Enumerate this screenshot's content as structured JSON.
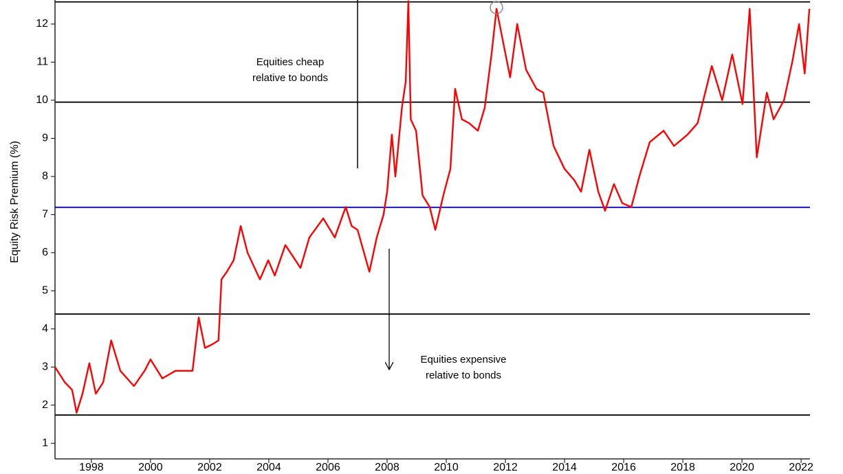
{
  "chart_data": {
    "type": "line",
    "ylabel": "Equity Risk Premium (%)",
    "xlim": [
      1996.77,
      2022.3
    ],
    "xticks": [
      1998,
      2000,
      2002,
      2004,
      2006,
      2008,
      2010,
      2012,
      2014,
      2016,
      2018,
      2020,
      2022
    ],
    "ylim": [
      0.59,
      12.63
    ],
    "yticks": [
      1,
      2,
      3,
      4,
      5,
      6,
      7,
      8,
      9,
      10,
      11,
      12
    ],
    "hlines": [
      {
        "value": 12.58,
        "color": "#000000"
      },
      {
        "value": 9.95,
        "color": "#000000"
      },
      {
        "value": 7.19,
        "color": "#0000ff"
      },
      {
        "value": 4.39,
        "color": "#000000"
      },
      {
        "value": 1.74,
        "color": "#000000"
      }
    ],
    "annotations": [
      {
        "lines": [
          "Equities cheap",
          "relative to bonds"
        ]
      },
      {
        "lines": [
          "Equities expensive",
          "relative to bonds"
        ]
      }
    ],
    "series": [
      {
        "color": "#ff0000",
        "x": [
          1996.77,
          1997.1,
          1997.35,
          1997.5,
          1997.7,
          1997.93,
          1998.15,
          1998.4,
          1998.67,
          1998.98,
          1999.44,
          1999.8,
          2000.0,
          2000.4,
          2000.84,
          2001.23,
          2001.42,
          2001.63,
          2001.84,
          2002.1,
          2002.3,
          2002.4,
          2002.58,
          2002.81,
          2003.05,
          2003.28,
          2003.7,
          2003.98,
          2004.2,
          2004.56,
          2005.07,
          2005.37,
          2005.84,
          2006.23,
          2006.6,
          2006.8,
          2007.0,
          2007.4,
          2007.65,
          2007.88,
          2008.0,
          2008.16,
          2008.28,
          2008.5,
          2008.63,
          2008.72,
          2008.8,
          2008.98,
          2009.2,
          2009.44,
          2009.63,
          2009.9,
          2010.14,
          2010.3,
          2010.53,
          2010.77,
          2011.07,
          2011.3,
          2011.53,
          2011.7,
          2011.93,
          2012.16,
          2012.4,
          2012.7,
          2013.05,
          2013.28,
          2013.63,
          2014.0,
          2014.33,
          2014.56,
          2014.84,
          2015.14,
          2015.37,
          2015.67,
          2015.95,
          2016.26,
          2016.53,
          2016.88,
          2017.35,
          2017.7,
          2018.16,
          2018.5,
          2018.98,
          2019.33,
          2019.67,
          2020.02,
          2020.26,
          2020.5,
          2020.84,
          2021.07,
          2021.42,
          2021.7,
          2021.93,
          2022.12,
          2022.28
        ],
        "values": [
          3.0,
          2.6,
          2.4,
          1.8,
          2.3,
          3.1,
          2.3,
          2.6,
          3.7,
          2.9,
          2.5,
          2.9,
          3.2,
          2.7,
          2.9,
          2.9,
          2.9,
          4.3,
          3.5,
          3.6,
          3.7,
          5.3,
          5.5,
          5.8,
          6.7,
          6.0,
          5.3,
          5.8,
          5.4,
          6.2,
          5.6,
          6.4,
          6.9,
          6.4,
          7.2,
          6.7,
          6.6,
          5.5,
          6.4,
          7.0,
          7.6,
          9.1,
          8.0,
          9.8,
          10.5,
          12.6,
          9.5,
          9.2,
          7.5,
          7.2,
          6.6,
          7.5,
          8.2,
          10.3,
          9.5,
          9.4,
          9.2,
          9.8,
          11.2,
          12.4,
          11.5,
          10.6,
          12.0,
          10.8,
          10.3,
          10.2,
          8.8,
          8.2,
          7.9,
          7.6,
          8.7,
          7.6,
          7.1,
          7.8,
          7.3,
          7.2,
          8.0,
          8.9,
          9.2,
          8.8,
          9.1,
          9.4,
          10.9,
          10.0,
          11.2,
          9.9,
          12.4,
          8.5,
          10.2,
          9.5,
          10.0,
          11.0,
          12.0,
          10.7,
          12.4
        ]
      }
    ]
  }
}
